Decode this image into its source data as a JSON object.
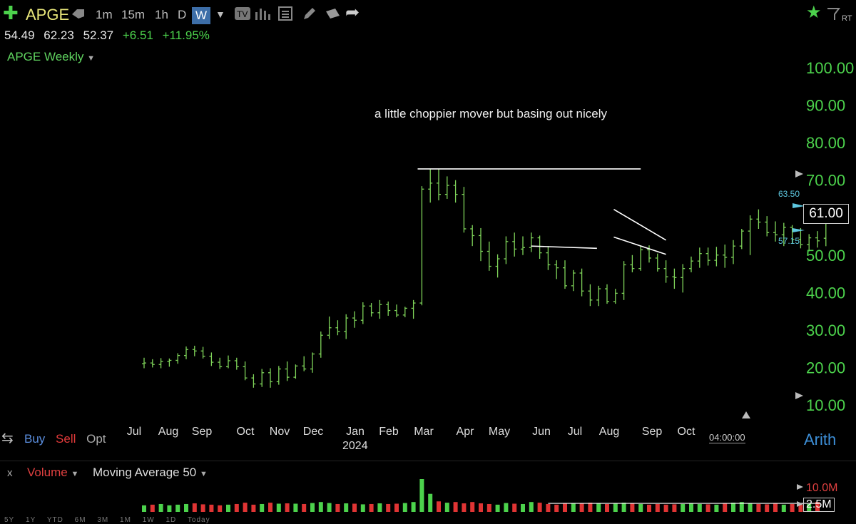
{
  "toolbar": {
    "ticker": "APGE",
    "timeframes": [
      "1m",
      "15m",
      "1h",
      "D"
    ],
    "active_timeframe": "W",
    "rt_label": "RT"
  },
  "quote": {
    "open": "54.49",
    "high": "62.23",
    "low": "52.37",
    "change": "+6.51",
    "change_pct": "+11.95%"
  },
  "chart_title": "APGE Weekly",
  "annotation": "a little choppier mover but basing out nicely",
  "last_price": "61.00",
  "marker_high": "63.50",
  "marker_low": "57.15",
  "trade": {
    "buy": "Buy",
    "sell": "Sell",
    "opt": "Opt"
  },
  "scale_mode": "Arith",
  "time_display": "04:00:00",
  "volume_panel": {
    "close": "x",
    "label": "Volume",
    "ma_label": "Moving Average 50",
    "max_label": "10.0M",
    "current_label": "2.5M"
  },
  "range_buttons": [
    "5Y",
    "1Y",
    "YTD",
    "6M",
    "3M",
    "1M",
    "1W",
    "1D",
    "Today"
  ],
  "colors": {
    "up": "#7fd45a",
    "down": "#e03434",
    "axis": "#4cd24c",
    "accent": "#3d6ea8"
  },
  "chart_data": {
    "type": "bar",
    "title": "APGE Weekly",
    "y_ticks": [
      "100.00",
      "90.00",
      "80.00",
      "70.00",
      "60.00",
      "50.00",
      "40.00",
      "30.00",
      "20.00",
      "10.00"
    ],
    "y_tick_values": [
      100,
      90,
      80,
      70,
      60,
      50,
      40,
      30,
      20,
      10
    ],
    "ylim": [
      5,
      105
    ],
    "month_labels": [
      "Jul",
      "Aug",
      "Sep",
      "Oct",
      "Nov",
      "Dec",
      "Jan",
      "Feb",
      "Mar",
      "Apr",
      "May",
      "Jun",
      "Jul",
      "Aug",
      "Sep",
      "Oct"
    ],
    "year_label": "2024",
    "bars": [
      {
        "o": 21.0,
        "h": 22.6,
        "l": 19.8,
        "c": 21.2
      },
      {
        "o": 21.2,
        "h": 22.2,
        "l": 20.0,
        "c": 20.8
      },
      {
        "o": 20.8,
        "h": 22.5,
        "l": 19.8,
        "c": 21.6
      },
      {
        "o": 21.6,
        "h": 22.4,
        "l": 20.2,
        "c": 21.9
      },
      {
        "o": 21.9,
        "h": 23.8,
        "l": 21.0,
        "c": 23.2
      },
      {
        "o": 23.2,
        "h": 25.6,
        "l": 22.2,
        "c": 24.8
      },
      {
        "o": 24.8,
        "h": 25.8,
        "l": 23.0,
        "c": 24.4
      },
      {
        "o": 24.4,
        "h": 25.5,
        "l": 22.4,
        "c": 23.0
      },
      {
        "o": 23.0,
        "h": 24.0,
        "l": 20.4,
        "c": 21.4
      },
      {
        "o": 21.4,
        "h": 22.6,
        "l": 19.6,
        "c": 20.2
      },
      {
        "o": 20.2,
        "h": 23.2,
        "l": 19.8,
        "c": 21.8
      },
      {
        "o": 21.8,
        "h": 22.6,
        "l": 19.4,
        "c": 20.2
      },
      {
        "o": 20.2,
        "h": 21.6,
        "l": 16.6,
        "c": 17.2
      },
      {
        "o": 17.2,
        "h": 18.2,
        "l": 14.6,
        "c": 15.6
      },
      {
        "o": 15.6,
        "h": 19.6,
        "l": 14.8,
        "c": 18.6
      },
      {
        "o": 18.6,
        "h": 19.8,
        "l": 14.6,
        "c": 16.2
      },
      {
        "o": 16.2,
        "h": 20.4,
        "l": 15.4,
        "c": 19.6
      },
      {
        "o": 19.6,
        "h": 21.6,
        "l": 16.4,
        "c": 17.4
      },
      {
        "o": 17.4,
        "h": 20.8,
        "l": 17.0,
        "c": 20.4
      },
      {
        "o": 20.4,
        "h": 23.0,
        "l": 19.0,
        "c": 19.6
      },
      {
        "o": 19.6,
        "h": 24.0,
        "l": 18.6,
        "c": 23.6
      },
      {
        "o": 23.6,
        "h": 29.6,
        "l": 22.6,
        "c": 28.6
      },
      {
        "o": 28.6,
        "h": 33.6,
        "l": 27.6,
        "c": 30.6
      },
      {
        "o": 30.6,
        "h": 32.6,
        "l": 28.6,
        "c": 29.6
      },
      {
        "o": 29.6,
        "h": 34.2,
        "l": 27.6,
        "c": 33.2
      },
      {
        "o": 33.2,
        "h": 35.0,
        "l": 30.6,
        "c": 32.6
      },
      {
        "o": 32.6,
        "h": 37.4,
        "l": 31.6,
        "c": 36.4
      },
      {
        "o": 36.4,
        "h": 37.2,
        "l": 33.6,
        "c": 34.6
      },
      {
        "o": 34.6,
        "h": 38.0,
        "l": 33.0,
        "c": 36.8
      },
      {
        "o": 36.8,
        "h": 37.6,
        "l": 33.8,
        "c": 35.2
      },
      {
        "o": 35.2,
        "h": 36.8,
        "l": 33.4,
        "c": 34.0
      },
      {
        "o": 34.0,
        "h": 36.2,
        "l": 33.4,
        "c": 35.8
      },
      {
        "o": 35.8,
        "h": 38.0,
        "l": 33.0,
        "c": 37.2
      },
      {
        "o": 37.2,
        "h": 68.4,
        "l": 36.6,
        "c": 67.6
      },
      {
        "o": 67.6,
        "h": 73.0,
        "l": 64.0,
        "c": 69.2
      },
      {
        "o": 69.2,
        "h": 73.0,
        "l": 64.6,
        "c": 66.2
      },
      {
        "o": 66.2,
        "h": 71.0,
        "l": 65.0,
        "c": 68.6
      },
      {
        "o": 68.6,
        "h": 70.0,
        "l": 64.0,
        "c": 66.2
      },
      {
        "o": 66.2,
        "h": 68.2,
        "l": 56.0,
        "c": 57.0
      },
      {
        "o": 57.0,
        "h": 58.0,
        "l": 52.4,
        "c": 55.2
      },
      {
        "o": 55.2,
        "h": 57.2,
        "l": 48.4,
        "c": 51.0
      },
      {
        "o": 51.0,
        "h": 53.6,
        "l": 45.8,
        "c": 47.0
      },
      {
        "o": 47.0,
        "h": 50.2,
        "l": 44.0,
        "c": 49.0
      },
      {
        "o": 49.0,
        "h": 55.0,
        "l": 47.6,
        "c": 53.6
      },
      {
        "o": 53.6,
        "h": 56.0,
        "l": 49.6,
        "c": 51.6
      },
      {
        "o": 51.6,
        "h": 55.0,
        "l": 50.0,
        "c": 52.0
      },
      {
        "o": 52.0,
        "h": 56.0,
        "l": 50.8,
        "c": 54.6
      },
      {
        "o": 54.6,
        "h": 55.2,
        "l": 49.0,
        "c": 50.6
      },
      {
        "o": 50.6,
        "h": 52.4,
        "l": 46.0,
        "c": 47.4
      },
      {
        "o": 47.4,
        "h": 48.6,
        "l": 43.6,
        "c": 46.6
      },
      {
        "o": 46.6,
        "h": 48.6,
        "l": 41.0,
        "c": 41.8
      },
      {
        "o": 41.8,
        "h": 46.0,
        "l": 40.4,
        "c": 45.2
      },
      {
        "o": 45.2,
        "h": 46.4,
        "l": 39.0,
        "c": 40.4
      },
      {
        "o": 40.4,
        "h": 42.2,
        "l": 36.4,
        "c": 38.0
      },
      {
        "o": 38.0,
        "h": 41.8,
        "l": 36.4,
        "c": 41.0
      },
      {
        "o": 41.0,
        "h": 42.2,
        "l": 37.0,
        "c": 37.6
      },
      {
        "o": 37.6,
        "h": 41.0,
        "l": 37.0,
        "c": 39.8
      },
      {
        "o": 39.8,
        "h": 48.4,
        "l": 38.0,
        "c": 47.4
      },
      {
        "o": 47.4,
        "h": 50.0,
        "l": 45.4,
        "c": 46.4
      },
      {
        "o": 46.4,
        "h": 52.4,
        "l": 45.8,
        "c": 51.4
      },
      {
        "o": 51.4,
        "h": 52.6,
        "l": 48.0,
        "c": 49.2
      },
      {
        "o": 49.2,
        "h": 50.4,
        "l": 45.6,
        "c": 46.4
      },
      {
        "o": 46.4,
        "h": 48.6,
        "l": 42.6,
        "c": 44.2
      },
      {
        "o": 44.2,
        "h": 46.4,
        "l": 41.0,
        "c": 44.0
      },
      {
        "o": 44.0,
        "h": 47.6,
        "l": 40.0,
        "c": 46.4
      },
      {
        "o": 46.4,
        "h": 49.6,
        "l": 45.4,
        "c": 48.4
      },
      {
        "o": 48.4,
        "h": 52.0,
        "l": 46.6,
        "c": 50.4
      },
      {
        "o": 50.4,
        "h": 52.0,
        "l": 47.2,
        "c": 48.6
      },
      {
        "o": 48.6,
        "h": 52.2,
        "l": 47.0,
        "c": 50.0
      },
      {
        "o": 50.0,
        "h": 52.8,
        "l": 46.6,
        "c": 49.4
      },
      {
        "o": 49.4,
        "h": 54.0,
        "l": 47.6,
        "c": 52.4
      },
      {
        "o": 52.4,
        "h": 57.0,
        "l": 51.6,
        "c": 56.4
      },
      {
        "o": 56.4,
        "h": 60.6,
        "l": 50.0,
        "c": 59.6
      },
      {
        "o": 59.6,
        "h": 62.2,
        "l": 57.0,
        "c": 58.8
      },
      {
        "o": 58.8,
        "h": 60.4,
        "l": 55.0,
        "c": 56.0
      },
      {
        "o": 56.0,
        "h": 59.0,
        "l": 53.6,
        "c": 55.4
      },
      {
        "o": 55.4,
        "h": 58.6,
        "l": 52.4,
        "c": 57.4
      },
      {
        "o": 57.4,
        "h": 58.0,
        "l": 53.2,
        "c": 54.2
      },
      {
        "o": 54.2,
        "h": 57.2,
        "l": 51.8,
        "c": 52.8
      },
      {
        "o": 52.8,
        "h": 55.6,
        "l": 51.0,
        "c": 54.6
      },
      {
        "o": 54.6,
        "h": 56.4,
        "l": 52.0,
        "c": 53.8
      },
      {
        "o": 54.49,
        "h": 62.23,
        "l": 52.37,
        "c": 61.0
      }
    ],
    "trendlines": [
      {
        "x0": 32.5,
        "y0": 73.0,
        "x1": 59.0,
        "y1": 73.0
      },
      {
        "x0": 46.0,
        "y0": 52.4,
        "x1": 53.8,
        "y1": 51.8
      },
      {
        "x0": 55.8,
        "y0": 62.2,
        "x1": 62.0,
        "y1": 54.0
      },
      {
        "x0": 55.8,
        "y0": 54.8,
        "x1": 62.0,
        "y1": 50.2
      }
    ],
    "volume_values": [
      0.2,
      0.22,
      0.24,
      0.2,
      0.22,
      0.24,
      0.26,
      0.23,
      0.22,
      0.2,
      0.22,
      0.24,
      0.28,
      0.22,
      0.24,
      0.28,
      0.25,
      0.26,
      0.25,
      0.24,
      0.27,
      0.3,
      0.27,
      0.24,
      0.26,
      0.25,
      0.23,
      0.24,
      0.26,
      0.24,
      0.25,
      0.27,
      0.3,
      1.0,
      0.55,
      0.32,
      0.28,
      0.3,
      0.26,
      0.3,
      0.26,
      0.24,
      0.22,
      0.27,
      0.25,
      0.24,
      0.3,
      0.28,
      0.24,
      0.22,
      0.26,
      0.25,
      0.25,
      0.28,
      0.27,
      0.24,
      0.26,
      0.28,
      0.26,
      0.24,
      0.22,
      0.24,
      0.22,
      0.23,
      0.24,
      0.25,
      0.24,
      0.23,
      0.22,
      0.26,
      0.28,
      0.3,
      0.25,
      0.24,
      0.23,
      0.25,
      0.22,
      0.24,
      0.22,
      0.24,
      0.3
    ],
    "volume_ma_level": 0.26
  }
}
